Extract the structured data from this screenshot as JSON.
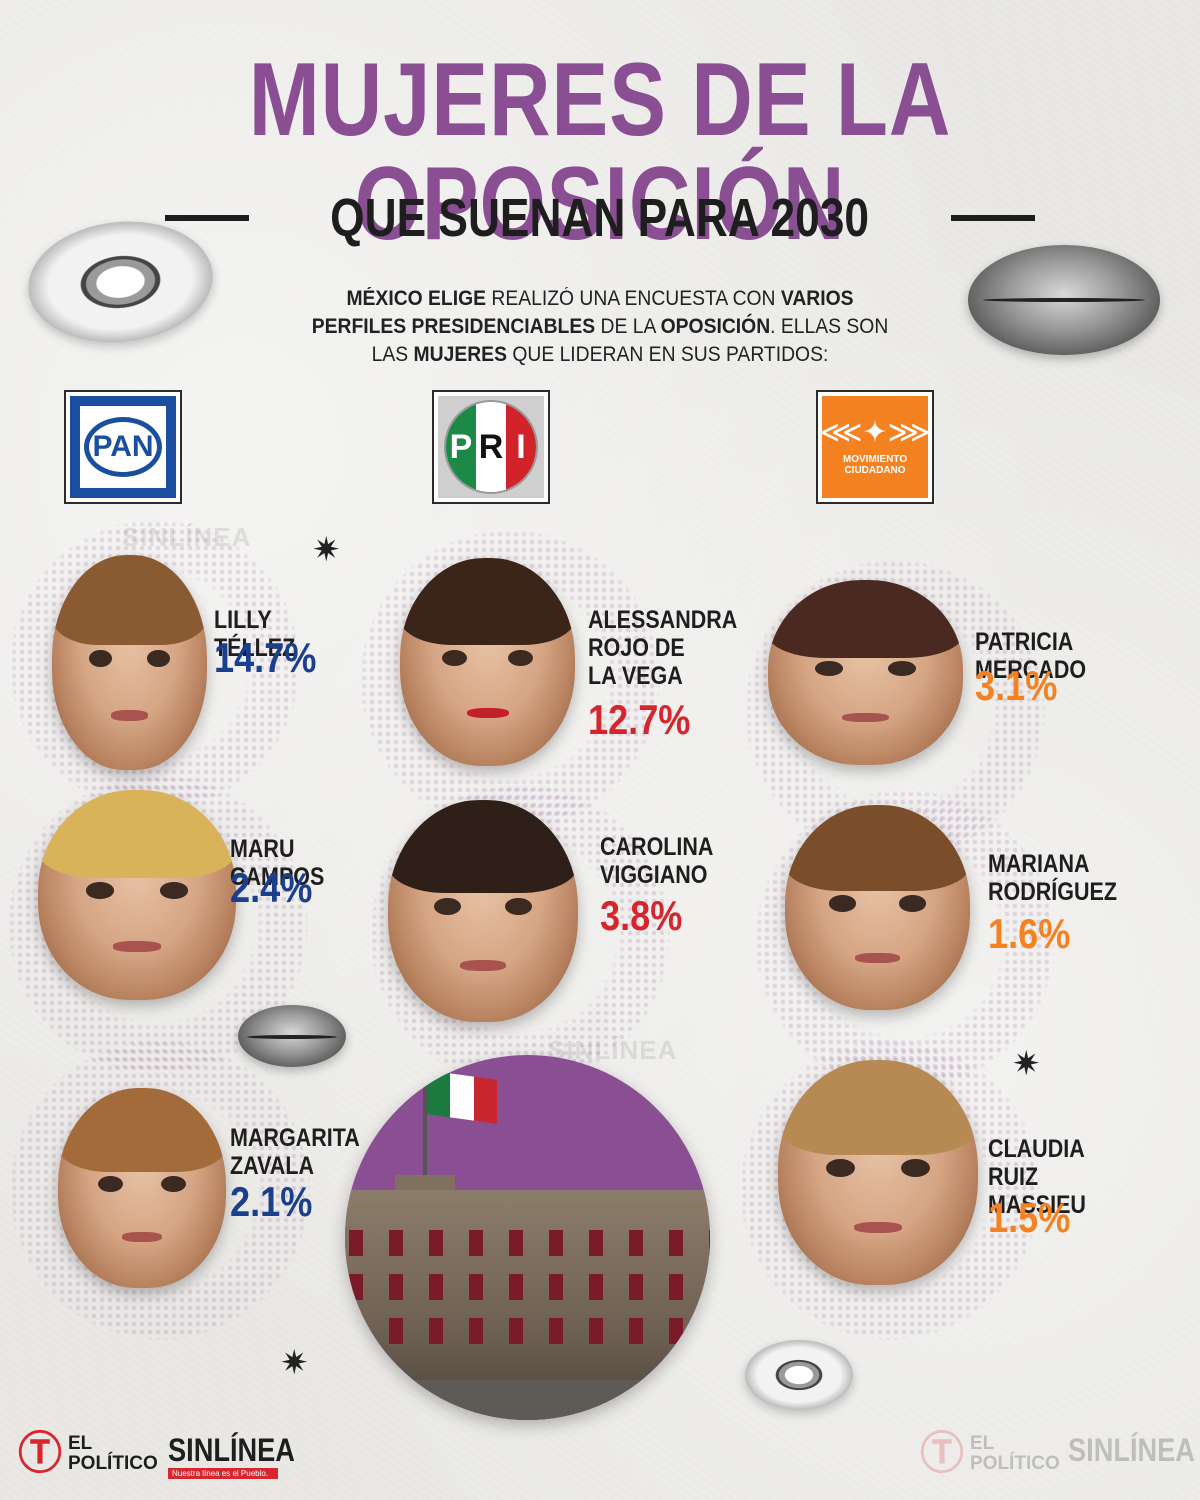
{
  "header": {
    "title": "MUJERES DE LA OPOSICIÓN",
    "subtitle": "QUE SUENAN PARA 2030"
  },
  "intro": {
    "p1_bold": "MÉXICO ELIGE",
    "p1": " REALIZÓ UNA ENCUESTA CON ",
    "p2_bold": "VARIOS PERFILES PRESIDENCIABLES",
    "p2": " DE LA ",
    "p3_bold": "OPOSICIÓN",
    "p3": ". ELLAS SON LAS ",
    "p4_bold": "MUJERES",
    "p4": " QUE LIDERAN EN SUS PARTIDOS:"
  },
  "parties": {
    "pan": {
      "label": "PAN",
      "color": "#1a4ea0"
    },
    "pri": {
      "letters": [
        "P",
        "R",
        "I"
      ],
      "color": "#d6262d"
    },
    "mc": {
      "label": "MOVIMIENTO CIUDADANO",
      "color": "#f58220"
    }
  },
  "candidates": {
    "pan": [
      {
        "name": "LILLY TÉLLEZ",
        "pct": "14.7%"
      },
      {
        "name": "MARU CAMPOS",
        "pct": "2.4%"
      },
      {
        "name": "MARGARITA ZAVALA",
        "pct": "2.1%"
      }
    ],
    "pri": [
      {
        "name": "ALESSANDRA ROJO DE LA VEGA",
        "pct": "12.7%"
      },
      {
        "name": "CAROLINA VIGGIANO",
        "pct": "3.8%"
      }
    ],
    "mc": [
      {
        "name": "PATRICIA MERCADO",
        "pct": "3.1%"
      },
      {
        "name": "MARIANA RODRÍGUEZ",
        "pct": "1.6%"
      },
      {
        "name": "CLAUDIA RUIZ MASSIEU",
        "pct": "1.5%"
      }
    ]
  },
  "brands": {
    "elpolitico": "EL POLÍTICO",
    "elpolitico_line1": "EL",
    "elpolitico_line2": "POLÍTICO",
    "sinlinea": "SINLÍNEA",
    "sinlinea_tag": "Nuestra línea es el Pueblo."
  },
  "colors": {
    "title": "#8a4f93",
    "pan": "#1a3f8f",
    "pri": "#d6262d",
    "mc": "#f58220"
  }
}
